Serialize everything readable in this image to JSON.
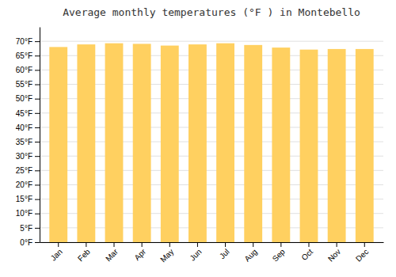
{
  "chart_data": {
    "type": "bar",
    "title": "Average monthly temperatures (°F ) in Montebello",
    "categories": [
      "Jan",
      "Feb",
      "Mar",
      "Apr",
      "May",
      "Jun",
      "Jul",
      "Aug",
      "Sep",
      "Oct",
      "Nov",
      "Dec"
    ],
    "values": [
      68.0,
      68.9,
      69.3,
      69.1,
      68.5,
      68.9,
      69.3,
      68.7,
      67.8,
      67.1,
      67.3,
      67.3
    ],
    "color": "#FFD060",
    "ylim": [
      0,
      75
    ],
    "yticks": [
      {
        "value": 0,
        "label": "0°F"
      },
      {
        "value": 5,
        "label": "5°F"
      },
      {
        "value": 10,
        "label": "10°F"
      },
      {
        "value": 15,
        "label": "15°F"
      },
      {
        "value": 20,
        "label": "20°F"
      },
      {
        "value": 25,
        "label": "25°F"
      },
      {
        "value": 30,
        "label": "30°F"
      },
      {
        "value": 35,
        "label": "35°F"
      },
      {
        "value": 40,
        "label": "40°F"
      },
      {
        "value": 45,
        "label": "45°F"
      },
      {
        "value": 50,
        "label": "50°F"
      },
      {
        "value": 55,
        "label": "55°F"
      },
      {
        "value": 60,
        "label": "60°F"
      },
      {
        "value": 65,
        "label": "65°F"
      },
      {
        "value": 70,
        "label": "70°F"
      }
    ],
    "grid": true
  }
}
